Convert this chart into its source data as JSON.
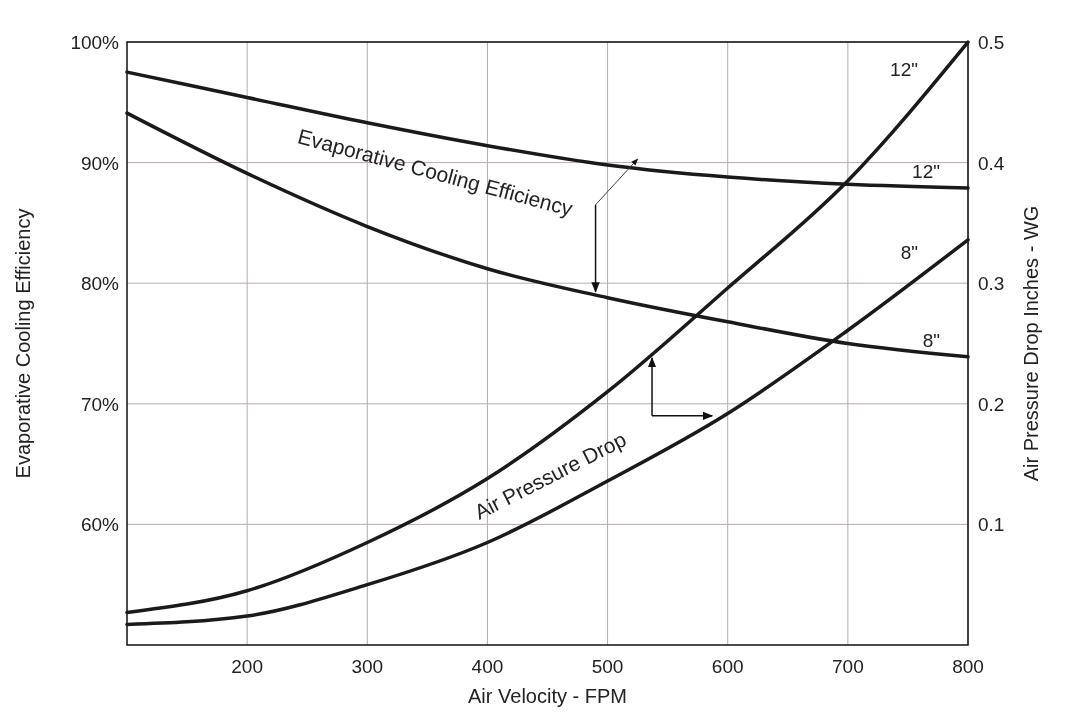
{
  "chart_data": {
    "type": "line",
    "xlabel": "Air Velocity - FPM",
    "ylabel": "Evaporative Cooling Efficiency",
    "y2label": "Air Pressure Drop Inches - WG",
    "x": [
      100,
      200,
      300,
      400,
      500,
      600,
      700,
      800
    ],
    "xlim": [
      100,
      800
    ],
    "xticks": [
      200,
      300,
      400,
      500,
      600,
      700,
      800
    ],
    "ylim": [
      50,
      100
    ],
    "yticks": [
      {
        "value": 60,
        "label": "60%"
      },
      {
        "value": 70,
        "label": "70%"
      },
      {
        "value": 80,
        "label": "80%"
      },
      {
        "value": 90,
        "label": "90%"
      },
      {
        "value": 100,
        "label": "100%"
      }
    ],
    "y2lim": [
      0,
      0.5
    ],
    "y2ticks": [
      0.1,
      0.2,
      0.3,
      0.4,
      0.5
    ],
    "grid": true,
    "series": [
      {
        "name": "12\"",
        "color": "#1a1a1a",
        "values": [
          97.5,
          95.4,
          93.3,
          91.4,
          89.8,
          88.8,
          88.2,
          87.9
        ]
      },
      {
        "name": "8\"",
        "color": "#1a1a1a",
        "values": [
          94.1,
          89.1,
          84.7,
          81.2,
          78.8,
          76.8,
          75.0,
          73.9
        ]
      },
      {
        "name": "12\"",
        "color": "#1a1a1a",
        "axis": "y2",
        "values": [
          0.027,
          0.045,
          0.085,
          0.138,
          0.21,
          0.296,
          0.385,
          0.5
        ]
      },
      {
        "name": "8\"",
        "color": "#1a1a1a",
        "axis": "y2",
        "values": [
          0.017,
          0.024,
          0.05,
          0.085,
          0.136,
          0.192,
          0.261,
          0.336
        ]
      }
    ],
    "annotations": [
      {
        "text": "Evaporative Cooling Efficiency",
        "x": 490,
        "y": 79.3
      },
      {
        "text": "Air Pressure Drop",
        "x": 537,
        "y": 73.8
      }
    ]
  }
}
